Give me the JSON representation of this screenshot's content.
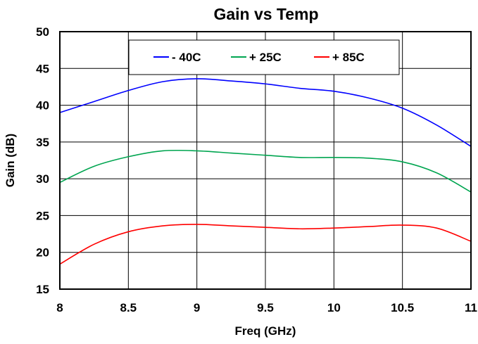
{
  "chart_data": {
    "type": "line",
    "title": "Gain vs Temp",
    "xlabel": "Freq (GHz)",
    "ylabel": "Gain (dB)",
    "xlim": [
      8,
      11
    ],
    "ylim": [
      15,
      50
    ],
    "xticks": [
      8,
      8.5,
      9,
      9.5,
      10,
      10.5,
      11
    ],
    "xtick_labels": [
      "8",
      "8.5",
      "9",
      "9.5",
      "10",
      "10.5",
      "11"
    ],
    "yticks": [
      15,
      20,
      25,
      30,
      35,
      40,
      45,
      50
    ],
    "ytick_labels": [
      "15",
      "20",
      "25",
      "30",
      "35",
      "40",
      "45",
      "50"
    ],
    "grid": true,
    "legend_position": "top-center",
    "series": [
      {
        "name": "- 40C",
        "color": "#0000ff",
        "x": [
          8.0,
          8.25,
          8.5,
          8.75,
          9.0,
          9.25,
          9.5,
          9.75,
          10.0,
          10.25,
          10.5,
          10.75,
          11.0
        ],
        "y": [
          39.0,
          40.5,
          42.0,
          43.2,
          43.6,
          43.3,
          42.9,
          42.3,
          41.9,
          41.0,
          39.6,
          37.3,
          34.4
        ]
      },
      {
        "name": "+ 25C",
        "color": "#00a550",
        "x": [
          8.0,
          8.25,
          8.5,
          8.75,
          9.0,
          9.25,
          9.5,
          9.75,
          10.0,
          10.25,
          10.5,
          10.75,
          11.0
        ],
        "y": [
          29.5,
          31.7,
          33.0,
          33.8,
          33.8,
          33.5,
          33.2,
          32.9,
          32.9,
          32.8,
          32.3,
          30.8,
          28.2
        ]
      },
      {
        "name": "+ 85C",
        "color": "#ff0000",
        "x": [
          8.0,
          8.25,
          8.5,
          8.75,
          9.0,
          9.25,
          9.5,
          9.75,
          10.0,
          10.25,
          10.5,
          10.75,
          11.0
        ],
        "y": [
          18.4,
          21.1,
          22.8,
          23.6,
          23.8,
          23.6,
          23.4,
          23.2,
          23.3,
          23.5,
          23.7,
          23.3,
          21.5
        ]
      }
    ]
  }
}
